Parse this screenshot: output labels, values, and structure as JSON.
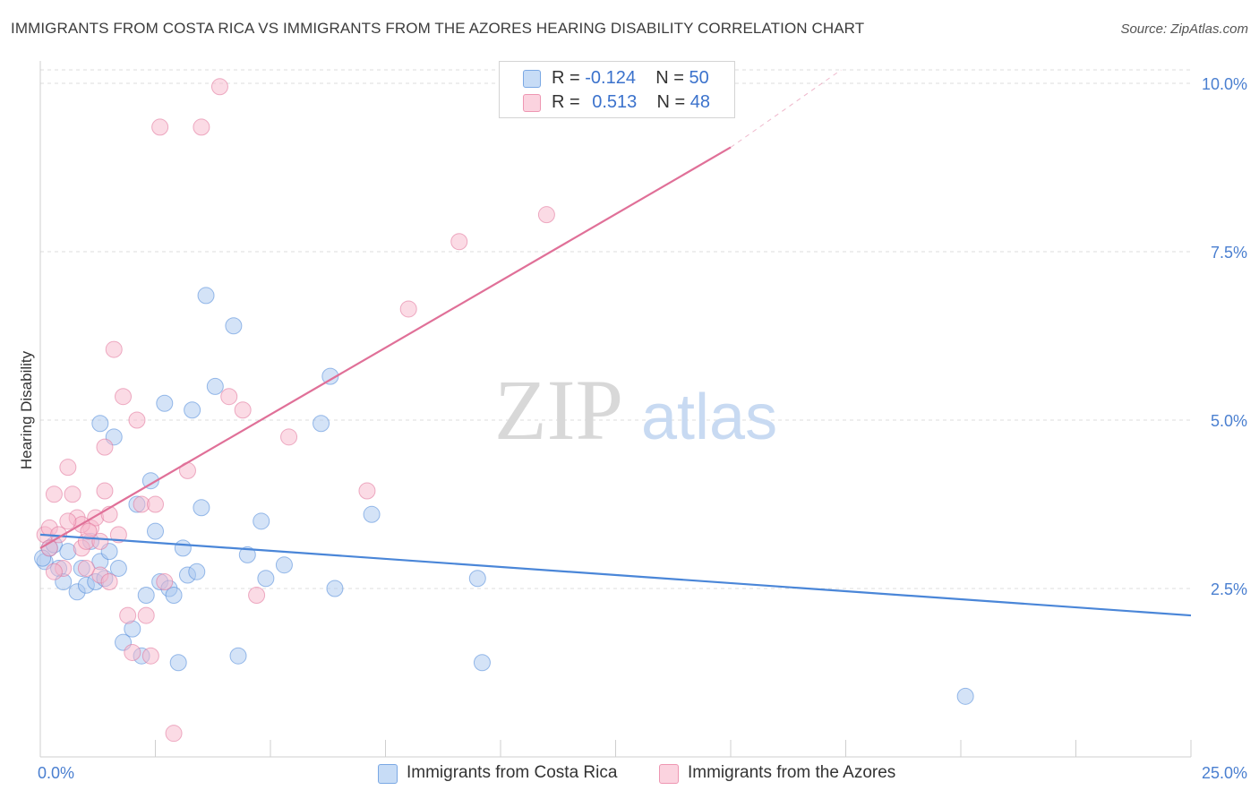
{
  "header": {
    "title": "IMMIGRANTS FROM COSTA RICA VS IMMIGRANTS FROM THE AZORES HEARING DISABILITY CORRELATION CHART",
    "source": "Source: ZipAtlas.com"
  },
  "watermark": {
    "zip": "ZIP",
    "atlas": "atlas"
  },
  "legend": {
    "rows": [
      {
        "r_label": "R =",
        "r_value": "-0.124",
        "n_label": "N =",
        "n_value": "50",
        "color": "#a9c8f0"
      },
      {
        "r_label": "R =",
        "r_value": "0.513",
        "n_label": "N =",
        "n_value": "48",
        "color": "#f7b8cc"
      }
    ]
  },
  "chart_data": {
    "type": "scatter",
    "title": "IMMIGRANTS FROM COSTA RICA VS IMMIGRANTS FROM THE AZORES HEARING DISABILITY CORRELATION CHART",
    "xlabel": "",
    "ylabel": "Hearing Disability",
    "xlim": [
      0,
      25
    ],
    "ylim": [
      0,
      10.2
    ],
    "x_tick_labels": [
      "0.0%",
      "25.0%"
    ],
    "y_ticks": [
      2.5,
      5.0,
      7.5,
      10.0
    ],
    "y_tick_labels": [
      "2.5%",
      "5.0%",
      "7.5%",
      "10.0%"
    ],
    "grid": "horizontal dashed",
    "legend_placement": "bottom-center",
    "series": [
      {
        "name": "Immigrants from Costa Rica",
        "color": "#4a86d8",
        "fill": "#a9c8f0",
        "trendline": {
          "x0": 0,
          "y0": 3.3,
          "x1": 25,
          "y1": 2.1
        },
        "points": [
          [
            0.1,
            2.9
          ],
          [
            0.2,
            3.1
          ],
          [
            0.3,
            3.15
          ],
          [
            0.4,
            2.8
          ],
          [
            0.5,
            2.6
          ],
          [
            0.6,
            3.05
          ],
          [
            0.8,
            2.45
          ],
          [
            0.9,
            2.8
          ],
          [
            1.0,
            2.55
          ],
          [
            1.1,
            3.2
          ],
          [
            1.2,
            2.6
          ],
          [
            1.3,
            2.9
          ],
          [
            1.3,
            4.95
          ],
          [
            1.4,
            2.65
          ],
          [
            1.5,
            3.05
          ],
          [
            1.6,
            4.75
          ],
          [
            1.7,
            2.8
          ],
          [
            1.8,
            1.7
          ],
          [
            2.0,
            1.9
          ],
          [
            2.1,
            3.75
          ],
          [
            2.2,
            1.5
          ],
          [
            2.3,
            2.4
          ],
          [
            2.4,
            4.1
          ],
          [
            2.5,
            3.35
          ],
          [
            2.6,
            2.6
          ],
          [
            2.7,
            5.25
          ],
          [
            2.8,
            2.5
          ],
          [
            2.9,
            2.4
          ],
          [
            3.0,
            1.4
          ],
          [
            3.1,
            3.1
          ],
          [
            3.2,
            2.7
          ],
          [
            3.3,
            5.15
          ],
          [
            3.4,
            2.75
          ],
          [
            3.5,
            3.7
          ],
          [
            3.6,
            6.85
          ],
          [
            3.8,
            5.5
          ],
          [
            4.2,
            6.4
          ],
          [
            4.3,
            1.5
          ],
          [
            4.5,
            3.0
          ],
          [
            4.8,
            3.5
          ],
          [
            4.9,
            2.65
          ],
          [
            5.3,
            2.85
          ],
          [
            6.1,
            4.95
          ],
          [
            6.3,
            5.65
          ],
          [
            6.4,
            2.5
          ],
          [
            7.2,
            3.6
          ],
          [
            9.5,
            2.65
          ],
          [
            9.6,
            1.4
          ],
          [
            20.1,
            0.9
          ],
          [
            0.05,
            2.95
          ]
        ]
      },
      {
        "name": "Immigrants from the Azores",
        "color": "#e07098",
        "fill": "#f7b8cc",
        "trendline": {
          "x0": 0,
          "y0": 3.1,
          "x1": 15,
          "y1": 9.05,
          "dash_to_x": 17.4,
          "dash_to_y": 10.2
        },
        "points": [
          [
            0.1,
            3.3
          ],
          [
            0.2,
            3.4
          ],
          [
            0.3,
            3.9
          ],
          [
            0.4,
            3.3
          ],
          [
            0.5,
            2.8
          ],
          [
            0.6,
            4.3
          ],
          [
            0.7,
            3.9
          ],
          [
            0.8,
            3.55
          ],
          [
            0.9,
            3.1
          ],
          [
            1.0,
            3.2
          ],
          [
            1.1,
            3.4
          ],
          [
            1.2,
            3.55
          ],
          [
            1.3,
            2.7
          ],
          [
            1.4,
            3.95
          ],
          [
            1.4,
            4.6
          ],
          [
            1.5,
            3.6
          ],
          [
            1.6,
            6.05
          ],
          [
            1.7,
            3.3
          ],
          [
            1.8,
            5.35
          ],
          [
            1.9,
            2.1
          ],
          [
            2.0,
            1.55
          ],
          [
            2.1,
            5.0
          ],
          [
            2.2,
            3.75
          ],
          [
            2.3,
            2.1
          ],
          [
            2.4,
            1.5
          ],
          [
            2.5,
            3.75
          ],
          [
            2.6,
            9.35
          ],
          [
            2.7,
            2.6
          ],
          [
            2.9,
            0.35
          ],
          [
            3.2,
            4.25
          ],
          [
            3.5,
            9.35
          ],
          [
            3.9,
            9.95
          ],
          [
            4.1,
            5.35
          ],
          [
            4.4,
            5.15
          ],
          [
            4.7,
            2.4
          ],
          [
            5.4,
            4.75
          ],
          [
            7.1,
            3.95
          ],
          [
            8.0,
            6.65
          ],
          [
            9.1,
            7.65
          ],
          [
            11.0,
            8.05
          ],
          [
            1.0,
            2.8
          ],
          [
            0.3,
            2.75
          ],
          [
            0.9,
            3.45
          ],
          [
            1.5,
            2.6
          ],
          [
            1.3,
            3.2
          ],
          [
            0.6,
            3.5
          ],
          [
            0.2,
            3.1
          ],
          [
            1.05,
            3.35
          ]
        ]
      }
    ]
  }
}
